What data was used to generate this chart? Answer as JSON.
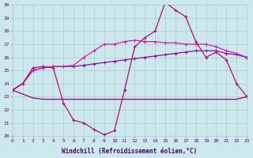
{
  "x": [
    0,
    1,
    2,
    3,
    4,
    5,
    6,
    7,
    8,
    9,
    10,
    11,
    12,
    13,
    14,
    15,
    16,
    17,
    18,
    19,
    20,
    21,
    22,
    23
  ],
  "y_wave": [
    23.5,
    24.0,
    25.2,
    25.3,
    25.2,
    22.5,
    21.2,
    21.0,
    20.5,
    20.1,
    20.4,
    23.5,
    26.8,
    27.5,
    28.0,
    30.2,
    29.6,
    29.1,
    27.2,
    26.0,
    26.4,
    25.8,
    24.0,
    23.0
  ],
  "y_mid": [
    23.5,
    24.0,
    25.0,
    25.2,
    25.3,
    25.3,
    25.4,
    26.0,
    26.5,
    27.0,
    27.0,
    27.2,
    27.3,
    27.2,
    27.2,
    27.1,
    27.1,
    27.0,
    27.0,
    27.0,
    26.8,
    26.5,
    26.3,
    26.0
  ],
  "y_slow": [
    23.5,
    24.0,
    25.0,
    25.2,
    25.3,
    25.3,
    25.3,
    25.4,
    25.5,
    25.6,
    25.7,
    25.8,
    25.9,
    26.0,
    26.1,
    26.2,
    26.3,
    26.4,
    26.5,
    26.5,
    26.5,
    26.3,
    26.2,
    26.0
  ],
  "y_flat": [
    23.5,
    23.2,
    22.9,
    22.8,
    22.8,
    22.8,
    22.8,
    22.8,
    22.8,
    22.8,
    22.8,
    22.8,
    22.8,
    22.8,
    22.8,
    22.8,
    22.8,
    22.8,
    22.8,
    22.8,
    22.8,
    22.8,
    22.8,
    23.0
  ],
  "bg_color": "#cde8ec",
  "grid_color": "#aacccc",
  "c_wave": "#aa1177",
  "c_mid": "#cc22aa",
  "c_slow": "#881199",
  "c_flat": "#990077",
  "ylim": [
    20,
    30
  ],
  "xlim": [
    0,
    23
  ],
  "yticks": [
    20,
    21,
    22,
    23,
    24,
    25,
    26,
    27,
    28,
    29,
    30
  ],
  "xticks": [
    0,
    1,
    2,
    3,
    4,
    5,
    6,
    7,
    8,
    9,
    10,
    11,
    12,
    13,
    14,
    15,
    16,
    17,
    18,
    19,
    20,
    21,
    22,
    23
  ],
  "xlabel": "Windchill (Refroidissement éolien,°C)"
}
